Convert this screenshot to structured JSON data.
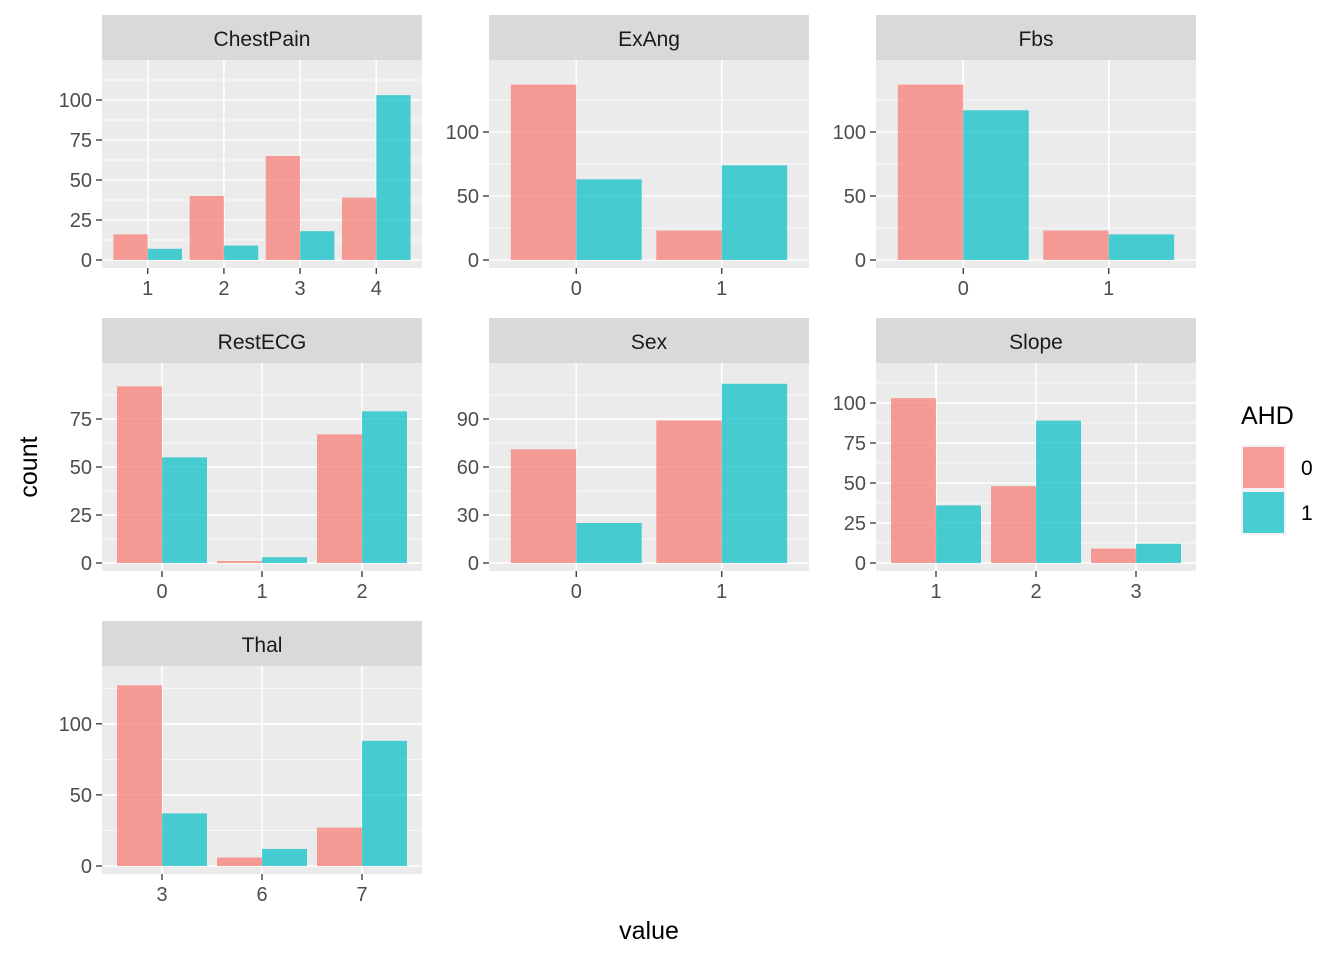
{
  "chart_data": {
    "type": "bar",
    "layout": "faceted grouped bars, free x and y scales per facet",
    "xlabel": "value",
    "ylabel": "count",
    "legend": {
      "title": "AHD",
      "entries": [
        {
          "label": "0",
          "color": "#F8766D"
        },
        {
          "label": "1",
          "color": "#00BFC4"
        }
      ],
      "placement": "right"
    },
    "series_colors": {
      "0": "#F8766D",
      "1": "#00BFC4"
    },
    "facets": [
      {
        "title": "ChestPain",
        "categories": [
          "1",
          "2",
          "3",
          "4"
        ],
        "series": [
          {
            "name": "0",
            "values": [
              16,
              40,
              65,
              39
            ]
          },
          {
            "name": "1",
            "values": [
              7,
              9,
              18,
              103
            ]
          }
        ],
        "ylim": [
          0,
          120
        ],
        "yticks": [
          0,
          25,
          50,
          75,
          100
        ]
      },
      {
        "title": "ExAng",
        "categories": [
          "0",
          "1"
        ],
        "series": [
          {
            "name": "0",
            "values": [
              137,
              23
            ]
          },
          {
            "name": "1",
            "values": [
              63,
              74
            ]
          }
        ],
        "ylim": [
          0,
          150
        ],
        "yticks": [
          0,
          50,
          100
        ]
      },
      {
        "title": "Fbs",
        "categories": [
          "0",
          "1"
        ],
        "series": [
          {
            "name": "0",
            "values": [
              137,
              23
            ]
          },
          {
            "name": "1",
            "values": [
              117,
              20
            ]
          }
        ],
        "ylim": [
          0,
          150
        ],
        "yticks": [
          0,
          50,
          100
        ]
      },
      {
        "title": "RestECG",
        "categories": [
          "0",
          "1",
          "2"
        ],
        "series": [
          {
            "name": "0",
            "values": [
              92,
              1,
              67
            ]
          },
          {
            "name": "1",
            "values": [
              55,
              3,
              79
            ]
          }
        ],
        "ylim": [
          0,
          100
        ],
        "yticks": [
          0,
          25,
          50,
          75
        ]
      },
      {
        "title": "Sex",
        "categories": [
          "0",
          "1"
        ],
        "series": [
          {
            "name": "0",
            "values": [
              71,
              89
            ]
          },
          {
            "name": "1",
            "values": [
              25,
              112
            ]
          }
        ],
        "ylim": [
          0,
          120
        ],
        "yticks": [
          0,
          30,
          60,
          90
        ]
      },
      {
        "title": "Slope",
        "categories": [
          "1",
          "2",
          "3"
        ],
        "series": [
          {
            "name": "0",
            "values": [
              103,
              48,
              9
            ]
          },
          {
            "name": "1",
            "values": [
              36,
              89,
              12
            ]
          }
        ],
        "ylim": [
          0,
          120
        ],
        "yticks": [
          0,
          25,
          50,
          75,
          100
        ]
      },
      {
        "title": "Thal",
        "categories": [
          "3",
          "6",
          "7"
        ],
        "series": [
          {
            "name": "0",
            "values": [
              127,
              6,
              27
            ]
          },
          {
            "name": "1",
            "values": [
              37,
              12,
              88
            ]
          }
        ],
        "ylim": [
          0,
          135
        ],
        "yticks": [
          0,
          50,
          100
        ]
      }
    ]
  }
}
